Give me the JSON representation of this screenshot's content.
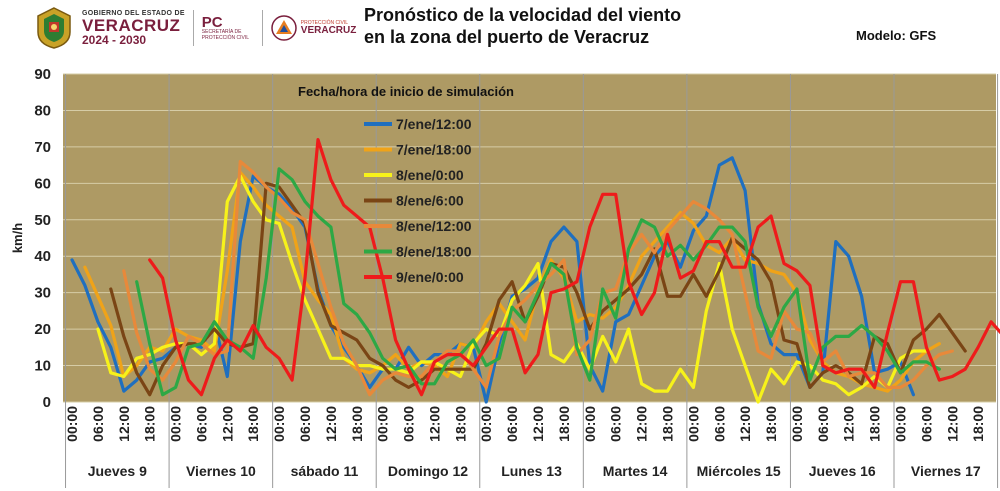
{
  "header": {
    "gob_line1": "GOBIERNO DEL ESTADO DE",
    "gob_line2": "VERACRUZ",
    "gob_line3": "2024 - 2030",
    "pc_line1": "PC",
    "pc_line2": "SECRETARÍA DE PROTECCIÓN CIVIL",
    "pcv_line1": "PROTECCIÓN CIVIL",
    "pcv_line2": "VERACRUZ",
    "title_line1": "Pronóstico de la velocidad del viento",
    "title_line2": "en la zona del puerto de Veracruz",
    "model": "Modelo: GFS"
  },
  "chart_data": {
    "type": "line",
    "ylabel": "km/h",
    "ylim": [
      0,
      90
    ],
    "yticks": [
      0,
      10,
      20,
      30,
      40,
      50,
      60,
      70,
      80,
      90
    ],
    "legend_title": "Fecha/hora de inicio de simulación",
    "legend_position": "top-center",
    "grid": true,
    "background": "#ae9a64",
    "tick_labels": [
      "00:00",
      "06:00",
      "12:00",
      "18:00"
    ],
    "days": [
      "Jueves 9",
      "Viernes 10",
      "sábado 11",
      "Domingo 12",
      "Lunes 13",
      "Martes 14",
      "Miércoles 15",
      "Jueves 16",
      "Viernes 17"
    ],
    "x_step_hours": 3,
    "series": [
      {
        "name": "7/ene/12:00",
        "color": "#1f6fbf",
        "start": 0,
        "values": [
          39,
          32,
          22,
          15,
          3,
          6,
          11,
          12,
          15,
          16,
          15,
          22,
          7,
          44,
          62,
          59,
          57,
          53,
          48,
          31,
          21,
          15,
          10,
          4,
          9,
          9,
          15,
          10,
          13,
          13,
          16,
          15,
          0,
          16,
          29,
          31,
          34,
          44,
          48,
          44,
          10,
          3,
          22,
          24,
          32,
          40,
          44,
          37,
          47,
          51,
          65,
          67,
          58,
          27,
          16,
          13,
          13,
          4,
          8,
          44,
          40,
          29,
          8,
          9,
          11,
          2
        ]
      },
      {
        "name": "7/ene/18:00",
        "color": "#f0a318",
        "start": 1,
        "values": [
          37,
          29,
          21,
          7,
          10,
          15,
          14,
          20,
          18,
          17,
          14,
          36,
          63,
          59,
          54,
          51,
          48,
          33,
          28,
          24,
          12,
          9,
          8,
          10,
          13,
          9,
          11,
          10,
          7,
          16,
          15,
          22,
          27,
          22,
          17,
          31,
          39,
          34,
          22,
          24,
          23,
          26,
          32,
          40,
          44,
          48,
          52,
          49,
          43,
          41,
          45,
          39,
          38,
          36,
          35,
          30,
          17,
          11,
          8,
          7,
          5,
          4,
          3,
          6,
          11,
          14,
          16
        ]
      },
      {
        "name": "8/ene/0:00",
        "color": "#f7f21a",
        "start": 2,
        "values": [
          20,
          8,
          7,
          12,
          13,
          15,
          16,
          16,
          13,
          16,
          55,
          62,
          55,
          50,
          49,
          38,
          28,
          20,
          12,
          12,
          10,
          10,
          9,
          9,
          8,
          11,
          11,
          9,
          7,
          16,
          20,
          18,
          28,
          32,
          38,
          13,
          11,
          16,
          9,
          18,
          11,
          20,
          5,
          3,
          3,
          9,
          4,
          25,
          38,
          20,
          10,
          0,
          9,
          5,
          11,
          10,
          6,
          5,
          2,
          4,
          7,
          4,
          12,
          14,
          14
        ]
      },
      {
        "name": "8/ene/6:00",
        "color": "#7a4515",
        "start": 3,
        "values": [
          31,
          18,
          8,
          2,
          10,
          15,
          16,
          16,
          20,
          16,
          15,
          16,
          60,
          59,
          54,
          49,
          30,
          21,
          19,
          17,
          12,
          10,
          6,
          4,
          6,
          9,
          9,
          9,
          9,
          16,
          28,
          33,
          22,
          29,
          38,
          37,
          30,
          20,
          25,
          28,
          31,
          35,
          42,
          29,
          29,
          35,
          29,
          36,
          45,
          42,
          39,
          33,
          17,
          16,
          4,
          8,
          10,
          8,
          5,
          18,
          16,
          8,
          17,
          20,
          24,
          19,
          14
        ]
      },
      {
        "name": "8/ene/12:00",
        "color": "#e8893a",
        "start": 4,
        "values": [
          36,
          19,
          9,
          6,
          11,
          18,
          16,
          13,
          14,
          66,
          63,
          59,
          56,
          52,
          50,
          38,
          26,
          16,
          10,
          2,
          6,
          8,
          7,
          7,
          11,
          14,
          14,
          9,
          4,
          18,
          25,
          28,
          32,
          35,
          39,
          13,
          17,
          30,
          31,
          41,
          46,
          41,
          47,
          51,
          55,
          53,
          50,
          46,
          30,
          14,
          12,
          25,
          20,
          19,
          11,
          14,
          7,
          8,
          8,
          4,
          4,
          6,
          10,
          13,
          14
        ]
      },
      {
        "name": "8/ene/18:00",
        "color": "#2da845",
        "start": 5,
        "values": [
          33,
          16,
          2,
          4,
          15,
          16,
          22,
          17,
          15,
          12,
          34,
          64,
          61,
          55,
          51,
          48,
          27,
          24,
          19,
          12,
          9,
          10,
          5,
          5,
          11,
          13,
          17,
          10,
          12,
          26,
          22,
          30,
          38,
          35,
          15,
          6,
          31,
          23,
          42,
          50,
          48,
          40,
          43,
          39,
          43,
          48,
          48,
          44,
          26,
          18,
          26,
          31,
          6,
          15,
          18,
          18,
          21,
          18,
          14,
          8,
          11,
          11,
          9
        ]
      },
      {
        "name": "9/ene/0:00",
        "color": "#ee1b1b",
        "start": 6,
        "values": [
          39,
          34,
          17,
          6,
          2,
          12,
          17,
          14,
          21,
          15,
          12,
          6,
          34,
          72,
          61,
          54,
          51,
          48,
          34,
          17,
          9,
          2,
          11,
          13,
          13,
          10,
          15,
          20,
          20,
          8,
          13,
          30,
          31,
          33,
          48,
          57,
          57,
          33,
          24,
          30,
          46,
          34,
          36,
          44,
          44,
          37,
          37,
          48,
          51,
          38,
          36,
          32,
          10,
          8,
          9,
          9,
          4,
          19,
          33,
          33,
          15,
          6,
          7,
          9,
          15,
          22,
          18
        ]
      }
    ]
  }
}
